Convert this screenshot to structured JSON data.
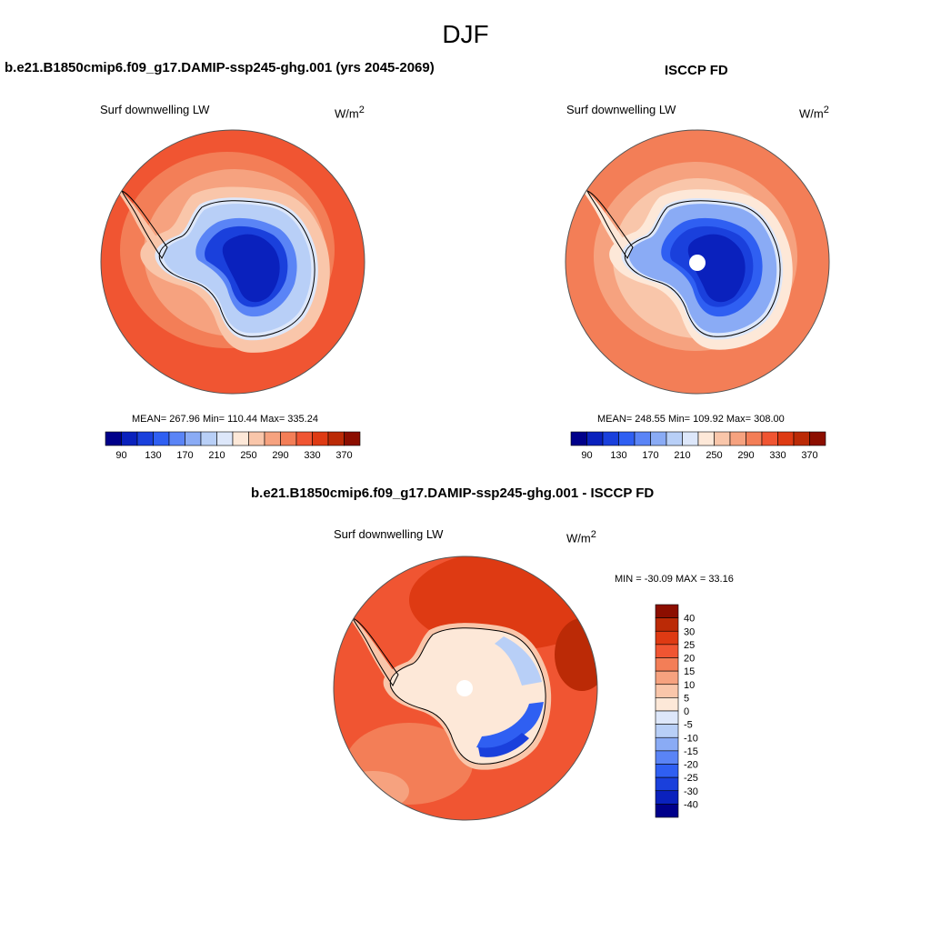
{
  "season": "DJF",
  "panels": [
    {
      "id": "model",
      "title": "b.e21.B1850cmip6.f09_g17.DAMIP-ssp245-ghg.001 (yrs 2045-2069)",
      "variable": "Surf downwelling LW",
      "units_base": "W/m",
      "units_exp": "2",
      "stats": "MEAN= 267.96  Min= 110.44  Max= 335.24",
      "stat_values": {
        "mean": 267.96,
        "min": 110.44,
        "max": 335.24
      }
    },
    {
      "id": "obs",
      "title": "ISCCP FD",
      "variable": "Surf downwelling LW",
      "units_base": "W/m",
      "units_exp": "2",
      "stats": "MEAN= 248.55  Min= 109.92  Max= 308.00",
      "stat_values": {
        "mean": 248.55,
        "min": 109.92,
        "max": 308.0
      }
    },
    {
      "id": "diff",
      "title": "b.e21.B1850cmip6.f09_g17.DAMIP-ssp245-ghg.001 - ISCCP FD",
      "variable": "Surf downwelling LW",
      "units_base": "W/m",
      "units_exp": "2",
      "stats": "MIN = -30.09 MAX =  33.16",
      "stat_values": {
        "min": -30.09,
        "max": 33.16
      }
    }
  ],
  "colorbars": {
    "absolute": {
      "labels": [
        "90",
        "130",
        "170",
        "210",
        "250",
        "290",
        "330",
        "370"
      ],
      "colors": [
        "#00008a",
        "#0a21bd",
        "#1a40dc",
        "#2f5ff2",
        "#5a84f6",
        "#8aabf5",
        "#b8cff7",
        "#dde7fa",
        "#fde8d8",
        "#f9c6aa",
        "#f6a27f",
        "#f37e57",
        "#f05532",
        "#de3a13",
        "#bb2a06",
        "#8c0e00"
      ]
    },
    "difference": {
      "labels": [
        "40",
        "30",
        "25",
        "20",
        "15",
        "10",
        "5",
        "0",
        "-5",
        "-10",
        "-15",
        "-20",
        "-25",
        "-30",
        "-40"
      ],
      "colors": [
        "#8c0e00",
        "#bb2a06",
        "#de3a13",
        "#f05532",
        "#f37e57",
        "#f6a27f",
        "#f9c6aa",
        "#fde8d8",
        "#dde7fa",
        "#b8cff7",
        "#8aabf5",
        "#5a84f6",
        "#2f5ff2",
        "#1a40dc",
        "#0a21bd",
        "#00008a"
      ]
    }
  },
  "map_colors": {
    "ocean_warm": "#f05532",
    "ocean_mid": "#f37e57",
    "ocean_light": "#f6a27f",
    "ocean_pale": "#f9c6aa",
    "coast_pale": "#fde8d8",
    "ice_pale": "#dde7fa",
    "ice_light": "#b8cff7",
    "ice_mid": "#5a84f6",
    "ice_deep": "#1a40dc",
    "ice_core": "#0a21bd",
    "diff_warm": "#de3a13",
    "diff_mid": "#f05532",
    "diff_light": "#f6a27f",
    "diff_pale": "#fde8d8",
    "diff_cool": "#2f5ff2"
  }
}
